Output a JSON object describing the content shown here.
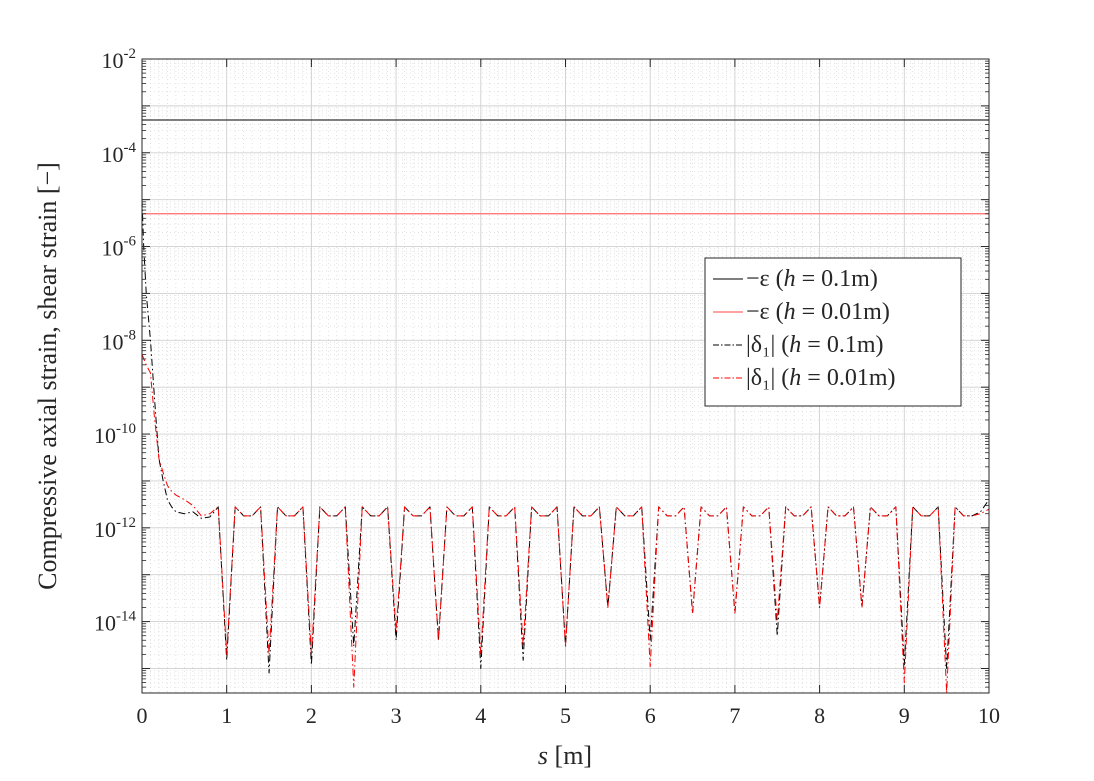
{
  "chart_data": {
    "type": "line",
    "title": "",
    "xlabel": "s [m]",
    "ylabel": "Compressive axial strain, shear strain [−]",
    "x_unit": "m",
    "xlim": [
      0,
      10
    ],
    "ylim": [
      3e-16,
      0.01
    ],
    "yscale": "log",
    "grid": true,
    "minor_grid": true,
    "legend_position": "right",
    "x_ticks": [
      0,
      1,
      2,
      3,
      4,
      5,
      6,
      7,
      8,
      9,
      10
    ],
    "y_ticks": [
      {
        "base": "10",
        "exp": "-14",
        "value": 1e-14
      },
      {
        "base": "10",
        "exp": "-12",
        "value": 1e-12
      },
      {
        "base": "10",
        "exp": "-10",
        "value": 1e-10
      },
      {
        "base": "10",
        "exp": "-8",
        "value": 1e-08
      },
      {
        "base": "10",
        "exp": "-6",
        "value": 1e-06
      },
      {
        "base": "10",
        "exp": "-4",
        "value": 0.0001
      },
      {
        "base": "10",
        "exp": "-2",
        "value": 0.01
      }
    ],
    "legend": [
      {
        "prefix": "−ε (",
        "var": "h",
        "suffix": " = 0.1m)"
      },
      {
        "prefix": "−ε (",
        "var": "h",
        "suffix": " = 0.01m)"
      },
      {
        "prefix": "|δ₁| (",
        "var": "h",
        "suffix": " = 0.1m)"
      },
      {
        "prefix": "|δ₁| (",
        "var": "h",
        "suffix": " = 0.01m)"
      }
    ],
    "series": [
      {
        "style": "solid",
        "color": "#333333",
        "x": [
          0,
          10
        ],
        "y": [
          0.0005,
          0.0005
        ]
      },
      {
        "style": "solid",
        "color": "#ff6a6a",
        "x": [
          0,
          10
        ],
        "y": [
          5e-06,
          5e-06
        ]
      },
      {
        "style": "dashdot",
        "color": "#000000",
        "x": [
          0,
          0.02,
          0.05,
          0.1,
          0.15,
          0.2,
          0.25,
          0.3,
          0.35,
          0.4,
          0.5,
          0.6,
          0.7,
          0.8,
          0.9,
          1.0,
          1.1,
          1.2,
          1.3,
          1.4,
          1.5,
          1.6,
          1.7,
          1.8,
          1.9,
          2.0,
          2.1,
          2.2,
          2.3,
          2.4,
          2.5,
          2.6,
          2.7,
          2.8,
          2.9,
          3.0,
          3.1,
          3.2,
          3.3,
          3.4,
          3.5,
          3.6,
          3.7,
          3.8,
          3.9,
          4.0,
          4.1,
          4.2,
          4.3,
          4.4,
          4.5,
          4.6,
          4.7,
          4.8,
          4.9,
          5.0,
          5.1,
          5.2,
          5.3,
          5.4,
          5.5,
          5.6,
          5.7,
          5.8,
          5.9,
          6.0,
          6.1,
          6.2,
          6.3,
          6.4,
          6.5,
          6.6,
          6.7,
          6.8,
          6.9,
          7.0,
          7.1,
          7.2,
          7.3,
          7.4,
          7.5,
          7.6,
          7.7,
          7.8,
          7.9,
          8.0,
          8.1,
          8.2,
          8.3,
          8.4,
          8.5,
          8.6,
          8.7,
          8.8,
          8.9,
          9.0,
          9.1,
          9.2,
          9.3,
          9.4,
          9.5,
          9.6,
          9.7,
          9.8,
          9.9,
          10.0
        ],
        "y": [
          1e-05,
          1e-06,
          1e-07,
          1e-08,
          5e-10,
          3e-11,
          1e-11,
          4e-12,
          2.8e-12,
          2.2e-12,
          2e-12,
          2.2e-12,
          1.6e-12,
          1.7e-12,
          2.8e-12,
          1.5e-15,
          2.8e-12,
          1.8e-12,
          1.8e-12,
          2.8e-12,
          8e-16,
          2.8e-12,
          1.8e-12,
          1.8e-12,
          2.8e-12,
          1.2e-15,
          2.8e-12,
          1.8e-12,
          1.8e-12,
          2.8e-12,
          3e-15,
          2.8e-12,
          1.8e-12,
          1.8e-12,
          2.8e-12,
          4e-15,
          2.8e-12,
          1.8e-12,
          1.8e-12,
          2.8e-12,
          4e-15,
          2.8e-12,
          1.8e-12,
          1.8e-12,
          2.8e-12,
          1e-15,
          2.8e-12,
          1.8e-12,
          1.8e-12,
          2.8e-12,
          1.5e-15,
          2.8e-12,
          1.8e-12,
          1.8e-12,
          2.8e-12,
          3e-15,
          2.8e-12,
          1.8e-12,
          1.8e-12,
          2.8e-12,
          2e-14,
          2.8e-12,
          1.8e-12,
          1.8e-12,
          2.8e-12,
          4e-15,
          2.8e-12,
          1.8e-12,
          1.8e-12,
          2.8e-12,
          1.5e-14,
          2.8e-12,
          1.8e-12,
          1.8e-12,
          2.8e-12,
          1.5e-14,
          2.8e-12,
          1.8e-12,
          1.8e-12,
          2.8e-12,
          5e-15,
          2.8e-12,
          1.8e-12,
          1.8e-12,
          2.8e-12,
          2e-14,
          2.8e-12,
          1.8e-12,
          1.8e-12,
          2.8e-12,
          2e-14,
          2.8e-12,
          1.8e-12,
          1.8e-12,
          2.8e-12,
          1.2e-15,
          2.8e-12,
          1.8e-12,
          1.8e-12,
          2.8e-12,
          1e-15,
          2.8e-12,
          1.8e-12,
          1.8e-12,
          2.2e-12,
          4e-12
        ]
      },
      {
        "style": "dashdot",
        "color": "#ff0000",
        "x": [
          0,
          0.05,
          0.1,
          0.15,
          0.2,
          0.25,
          0.3,
          0.35,
          0.4,
          0.5,
          0.6,
          0.7,
          0.8,
          0.9,
          1.0,
          1.1,
          1.2,
          1.3,
          1.4,
          1.5,
          1.6,
          1.7,
          1.8,
          1.9,
          2.0,
          2.1,
          2.2,
          2.3,
          2.4,
          2.5,
          2.6,
          2.7,
          2.8,
          2.9,
          3.0,
          3.1,
          3.2,
          3.3,
          3.4,
          3.5,
          3.6,
          3.7,
          3.8,
          3.9,
          4.0,
          4.1,
          4.2,
          4.3,
          4.4,
          4.5,
          4.6,
          4.7,
          4.8,
          4.9,
          5.0,
          5.1,
          5.2,
          5.3,
          5.4,
          5.5,
          5.6,
          5.7,
          5.8,
          5.9,
          6.0,
          6.1,
          6.2,
          6.3,
          6.4,
          6.5,
          6.6,
          6.7,
          6.8,
          6.9,
          7.0,
          7.1,
          7.2,
          7.3,
          7.4,
          7.5,
          7.6,
          7.7,
          7.8,
          7.9,
          8.0,
          8.1,
          8.2,
          8.3,
          8.4,
          8.5,
          8.6,
          8.7,
          8.8,
          8.9,
          9.0,
          9.1,
          9.2,
          9.3,
          9.4,
          9.5,
          9.6,
          9.7,
          9.8,
          9.9,
          10.0
        ],
        "y": [
          5e-09,
          3e-09,
          2e-09,
          2e-10,
          3e-11,
          1.5e-11,
          8e-12,
          6e-12,
          5e-12,
          4e-12,
          3e-12,
          1.8e-12,
          2e-12,
          2.8e-12,
          2e-15,
          2.8e-12,
          1.8e-12,
          1.8e-12,
          2.8e-12,
          2e-15,
          2.8e-12,
          1.8e-12,
          1.8e-12,
          2.8e-12,
          2e-15,
          2.8e-12,
          1.8e-12,
          1.8e-12,
          2.8e-12,
          4e-16,
          2.8e-12,
          1.8e-12,
          1.8e-12,
          2.8e-12,
          6e-15,
          2.8e-12,
          1.8e-12,
          1.8e-12,
          2.8e-12,
          4e-15,
          2.8e-12,
          1.8e-12,
          1.8e-12,
          2.8e-12,
          2e-15,
          2.8e-12,
          1.8e-12,
          1.8e-12,
          2.8e-12,
          3e-15,
          2.8e-12,
          1.8e-12,
          1.8e-12,
          2.8e-12,
          3e-15,
          2.8e-12,
          1.8e-12,
          1.8e-12,
          2.8e-12,
          2e-14,
          2.8e-12,
          1.8e-12,
          1.8e-12,
          2.8e-12,
          1.1e-15,
          2.8e-12,
          1.8e-12,
          1.8e-12,
          2.8e-12,
          1.5e-14,
          2.8e-12,
          1.8e-12,
          1.8e-12,
          2.8e-12,
          1.5e-14,
          2.8e-12,
          1.8e-12,
          1.8e-12,
          2.8e-12,
          1e-14,
          2.8e-12,
          1.8e-12,
          1.8e-12,
          2.8e-12,
          2e-14,
          2.8e-12,
          1.8e-12,
          1.8e-12,
          2.8e-12,
          2e-14,
          2.8e-12,
          1.8e-12,
          1.8e-12,
          2.8e-12,
          5e-16,
          2.8e-12,
          1.8e-12,
          1.8e-12,
          2.8e-12,
          3e-16,
          2.8e-12,
          1.8e-12,
          1.8e-12,
          2e-12,
          2.5e-12
        ]
      }
    ]
  }
}
